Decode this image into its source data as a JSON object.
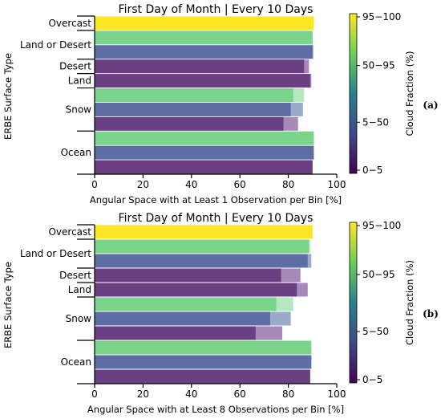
{
  "colors": {
    "yellow": "#fde725",
    "green": "#7ad48b",
    "blue": "#5c6ea3",
    "purple": "#6a3f83",
    "light_green": "#b4e8bf",
    "light_blue": "#9aaaca",
    "light_purple": "#a888b8"
  },
  "colorbar": {
    "label": "Cloud Fraction (%)",
    "ticks": [
      "0−5",
      "5−50",
      "50−95",
      "95−100"
    ]
  },
  "chart_data": [
    {
      "type": "bar",
      "orientation": "horizontal",
      "panel_tag": "(a)",
      "title": "First Day of Month | Every 10 Days",
      "xlabel": "Angular Space with at Least 1 Observation per Bin [%]",
      "ylabel": "ERBE Surface Type",
      "xlim": [
        0,
        100
      ],
      "xticks": [
        "0",
        "20",
        "40",
        "60",
        "80",
        "100"
      ],
      "groups": [
        "Overcast",
        "Land or Desert",
        "Desert",
        "Land",
        "Snow",
        "Ocean"
      ],
      "bars": [
        {
          "group": "Overcast",
          "cloud_fraction": "95−100",
          "first_day": 90.5,
          "every_10_days": 90.5
        },
        {
          "group": "Land or Desert",
          "cloud_fraction": "50−95",
          "first_day": 90.0,
          "every_10_days": 90.0
        },
        {
          "group": "Land or Desert",
          "cloud_fraction": "5−50",
          "first_day": 90.0,
          "every_10_days": 90.3
        },
        {
          "group": "Desert",
          "cloud_fraction": "0−5",
          "first_day": 86.5,
          "every_10_days": 88.5
        },
        {
          "group": "Land",
          "cloud_fraction": "0−5",
          "first_day": 89.0,
          "every_10_days": 89.5
        },
        {
          "group": "Snow",
          "cloud_fraction": "50−95",
          "first_day": 82.0,
          "every_10_days": 86.5
        },
        {
          "group": "Snow",
          "cloud_fraction": "5−50",
          "first_day": 81.0,
          "every_10_days": 86.0
        },
        {
          "group": "Snow",
          "cloud_fraction": "0−5",
          "first_day": 78.0,
          "every_10_days": 84.0
        },
        {
          "group": "Ocean",
          "cloud_fraction": "50−95",
          "first_day": 90.5,
          "every_10_days": 90.5
        },
        {
          "group": "Ocean",
          "cloud_fraction": "5−50",
          "first_day": 90.5,
          "every_10_days": 90.5
        },
        {
          "group": "Ocean",
          "cloud_fraction": "0−5",
          "first_day": 90.0,
          "every_10_days": 90.0
        }
      ]
    },
    {
      "type": "bar",
      "orientation": "horizontal",
      "panel_tag": "(b)",
      "title": "First Day of Month | Every 10 Days",
      "xlabel": "Angular Space with at Least 8 Observations per Bin [%]",
      "ylabel": "ERBE Surface Type",
      "xlim": [
        0,
        100
      ],
      "xticks": [
        "0",
        "20",
        "40",
        "60",
        "80",
        "100"
      ],
      "groups": [
        "Overcast",
        "Land or Desert",
        "Desert",
        "Land",
        "Snow",
        "Ocean"
      ],
      "bars": [
        {
          "group": "Overcast",
          "cloud_fraction": "95−100",
          "first_day": 89.5,
          "every_10_days": 90.0
        },
        {
          "group": "Land or Desert",
          "cloud_fraction": "50−95",
          "first_day": 88.5,
          "every_10_days": 89.0
        },
        {
          "group": "Land or Desert",
          "cloud_fraction": "5−50",
          "first_day": 88.0,
          "every_10_days": 89.5
        },
        {
          "group": "Desert",
          "cloud_fraction": "0−5",
          "first_day": 77.0,
          "every_10_days": 85.0
        },
        {
          "group": "Land",
          "cloud_fraction": "0−5",
          "first_day": 83.5,
          "every_10_days": 88.0
        },
        {
          "group": "Snow",
          "cloud_fraction": "50−95",
          "first_day": 75.0,
          "every_10_days": 82.0
        },
        {
          "group": "Snow",
          "cloud_fraction": "5−50",
          "first_day": 72.5,
          "every_10_days": 81.0
        },
        {
          "group": "Snow",
          "cloud_fraction": "0−5",
          "first_day": 66.5,
          "every_10_days": 77.5
        },
        {
          "group": "Ocean",
          "cloud_fraction": "50−95",
          "first_day": 89.5,
          "every_10_days": 89.5
        },
        {
          "group": "Ocean",
          "cloud_fraction": "5−50",
          "first_day": 89.5,
          "every_10_days": 89.5
        },
        {
          "group": "Ocean",
          "cloud_fraction": "0−5",
          "first_day": 89.0,
          "every_10_days": 89.0
        }
      ]
    }
  ]
}
